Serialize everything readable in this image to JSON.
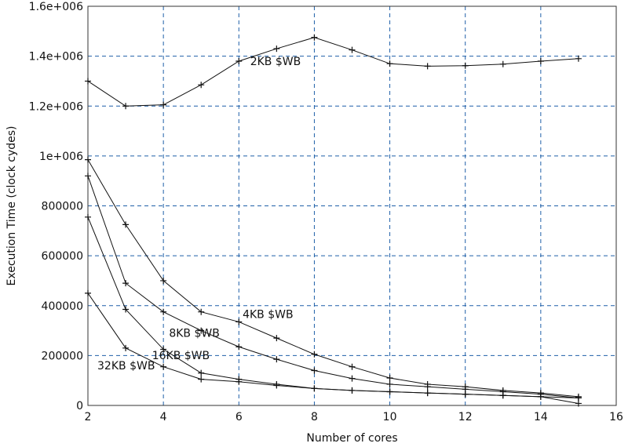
{
  "chart_data": {
    "type": "line",
    "title": "",
    "xlabel": "Number of cores",
    "ylabel": "Execution Time (clock cydes)",
    "xlim": [
      2,
      16
    ],
    "ylim": [
      0,
      1600000
    ],
    "x_ticks": [
      2,
      4,
      6,
      8,
      10,
      12,
      14,
      16
    ],
    "x_tick_labels": [
      "2",
      "4",
      "6",
      "8",
      "10",
      "12",
      "14",
      "16"
    ],
    "y_ticks": [
      0,
      200000,
      400000,
      600000,
      800000,
      1000000,
      1200000,
      1400000,
      1600000
    ],
    "y_tick_labels": [
      "0",
      "200000",
      "400000",
      "600000",
      "800000",
      "1e+006",
      "1.2e+006",
      "1.4e+006",
      "1.6e+006"
    ],
    "grid": true,
    "series": [
      {
        "name": "2KB $WB",
        "points": [
          [
            2,
            1300000
          ],
          [
            3,
            1200000
          ],
          [
            4,
            1205000
          ],
          [
            5,
            1285000
          ],
          [
            6,
            1380000
          ],
          [
            7,
            1430000
          ],
          [
            8,
            1475000
          ],
          [
            9,
            1425000
          ],
          [
            10,
            1370000
          ],
          [
            11,
            1360000
          ],
          [
            12,
            1362000
          ],
          [
            13,
            1368000
          ],
          [
            14,
            1380000
          ],
          [
            15,
            1390000
          ]
        ]
      },
      {
        "name": "4KB $WB",
        "points": [
          [
            2,
            985000
          ],
          [
            3,
            725000
          ],
          [
            4,
            500000
          ],
          [
            5,
            375000
          ],
          [
            6,
            335000
          ],
          [
            7,
            270000
          ],
          [
            8,
            205000
          ],
          [
            9,
            155000
          ],
          [
            10,
            110000
          ],
          [
            11,
            85000
          ],
          [
            12,
            75000
          ],
          [
            13,
            60000
          ],
          [
            14,
            50000
          ],
          [
            15,
            35000
          ]
        ]
      },
      {
        "name": "8KB $WB",
        "points": [
          [
            2,
            920000
          ],
          [
            3,
            490000
          ],
          [
            4,
            375000
          ],
          [
            5,
            300000
          ],
          [
            6,
            235000
          ],
          [
            7,
            185000
          ],
          [
            8,
            140000
          ],
          [
            9,
            108000
          ],
          [
            10,
            85000
          ],
          [
            11,
            75000
          ],
          [
            12,
            65000
          ],
          [
            13,
            55000
          ],
          [
            14,
            45000
          ],
          [
            15,
            30000
          ]
        ]
      },
      {
        "name": "16KB $WB",
        "points": [
          [
            2,
            755000
          ],
          [
            3,
            385000
          ],
          [
            4,
            225000
          ],
          [
            5,
            130000
          ],
          [
            6,
            105000
          ],
          [
            7,
            85000
          ],
          [
            8,
            68000
          ],
          [
            9,
            60000
          ],
          [
            10,
            55000
          ],
          [
            11,
            50000
          ],
          [
            12,
            45000
          ],
          [
            13,
            40000
          ],
          [
            14,
            35000
          ],
          [
            15,
            30000
          ]
        ]
      },
      {
        "name": "32KB $WB",
        "points": [
          [
            2,
            450000
          ],
          [
            3,
            230000
          ],
          [
            4,
            155000
          ],
          [
            5,
            105000
          ],
          [
            6,
            95000
          ],
          [
            7,
            80000
          ],
          [
            8,
            68000
          ],
          [
            9,
            60000
          ],
          [
            10,
            55000
          ],
          [
            11,
            50000
          ],
          [
            12,
            45000
          ],
          [
            13,
            40000
          ],
          [
            14,
            35000
          ],
          [
            15,
            8000
          ]
        ]
      }
    ],
    "annotations": [
      {
        "text": "2KB $WB",
        "x": 6.3,
        "y": 1365000
      },
      {
        "text": "4KB $WB",
        "x": 6.1,
        "y": 350000
      },
      {
        "text": "8KB $WB",
        "x": 4.15,
        "y": 275000
      },
      {
        "text": "16KB $WB",
        "x": 3.7,
        "y": 185000
      },
      {
        "text": "32KB $WB",
        "x": 2.25,
        "y": 145000
      }
    ]
  }
}
